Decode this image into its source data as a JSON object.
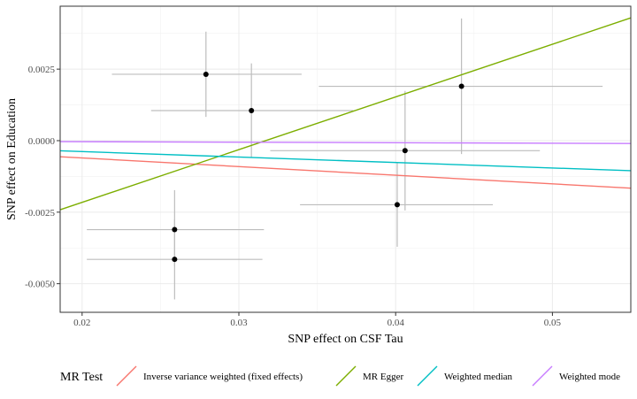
{
  "chart_data": {
    "type": "scatter",
    "title": "",
    "xlabel": "SNP effect on CSF Tau",
    "ylabel": "SNP effect on Education",
    "xlim": [
      0.0186,
      0.055
    ],
    "ylim": [
      -0.006,
      0.0047
    ],
    "x_ticks": [
      0.02,
      0.03,
      0.04,
      0.05
    ],
    "x_tick_labels": [
      "0.02",
      "0.03",
      "0.04",
      "0.05"
    ],
    "y_ticks": [
      -0.005,
      -0.0025,
      0.0,
      0.0025
    ],
    "y_tick_labels": [
      "-0.0050",
      "-0.0025",
      "0.0000",
      "0.0025"
    ],
    "grid": true,
    "points": [
      {
        "x": 0.0279,
        "y": 0.00232,
        "x_lo": 0.0219,
        "x_hi": 0.034,
        "y_lo": 0.00083,
        "y_hi": 0.00381
      },
      {
        "x": 0.0308,
        "y": 0.00105,
        "x_lo": 0.0244,
        "x_hi": 0.0373,
        "y_lo": -0.00059,
        "y_hi": 0.0027
      },
      {
        "x": 0.0442,
        "y": 0.0019,
        "x_lo": 0.0351,
        "x_hi": 0.0532,
        "y_lo": -0.00047,
        "y_hi": 0.00427
      },
      {
        "x": 0.0406,
        "y": -0.00035,
        "x_lo": 0.032,
        "x_hi": 0.0492,
        "y_lo": -0.00244,
        "y_hi": 0.00174
      },
      {
        "x": 0.0401,
        "y": -0.00224,
        "x_lo": 0.0339,
        "x_hi": 0.0462,
        "y_lo": -0.00371,
        "y_hi": -0.00077
      },
      {
        "x": 0.0259,
        "y": -0.00311,
        "x_lo": 0.0203,
        "x_hi": 0.0316,
        "y_lo": -0.00439,
        "y_hi": -0.00173
      },
      {
        "x": 0.0259,
        "y": -0.00415,
        "x_lo": 0.0203,
        "x_hi": 0.0315,
        "y_lo": -0.00555,
        "y_hi": -0.00276
      }
    ],
    "legend_title": "MR Test",
    "legend_position": "bottom",
    "series": [
      {
        "name": "Inverse variance weighted (fixed effects)",
        "color": "#F8766D",
        "intercept": 0.0,
        "slope": -0.0302
      },
      {
        "name": "MR Egger",
        "color": "#7CAE00",
        "intercept": -0.00584,
        "slope": 0.1842
      },
      {
        "name": "Weighted median",
        "color": "#00BFC4",
        "intercept": 0.0,
        "slope": -0.0191
      },
      {
        "name": "Weighted mode",
        "color": "#C77CFF",
        "intercept": 0.0,
        "slope": -0.0018
      }
    ]
  }
}
